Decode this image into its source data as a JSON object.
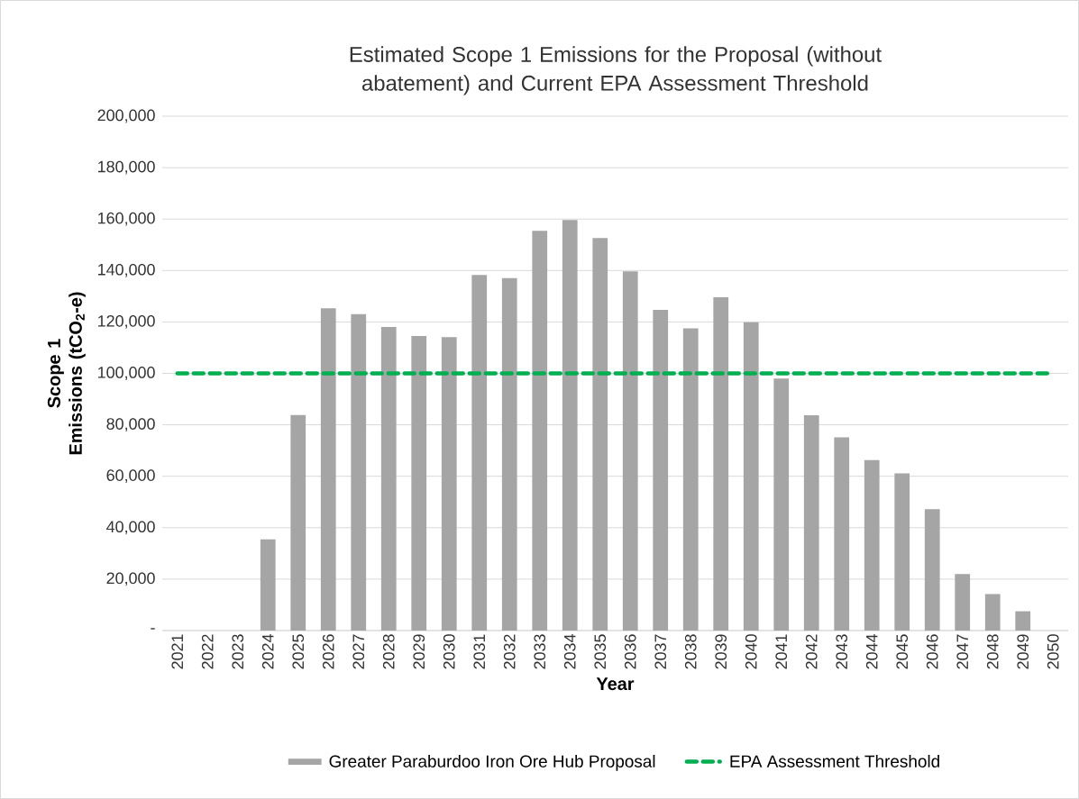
{
  "chart_data": {
    "type": "bar",
    "title": "Estimated Scope 1 Emissions for the Proposal (without abatement) and Current EPA Assessment Threshold",
    "xlabel": "Year",
    "ylabel": "Scope 1 Emissions (tCO$_{2}$-e)",
    "categories": [
      "2021",
      "2022",
      "2023",
      "2024",
      "2025",
      "2026",
      "2027",
      "2028",
      "2029",
      "2030",
      "2031",
      "2032",
      "2033",
      "2034",
      "2035",
      "2036",
      "2037",
      "2038",
      "2039",
      "2040",
      "2041",
      "2042",
      "2043",
      "2044",
      "2045",
      "2046",
      "2047",
      "2048",
      "2049",
      "2050"
    ],
    "series": [
      {
        "name": "Greater Paraburdoo Iron Ore Hub Proposal",
        "color": "#a5a5a5",
        "values": [
          0,
          0,
          0,
          35500,
          83800,
          125300,
          123000,
          118000,
          114500,
          114100,
          138300,
          137000,
          155400,
          159600,
          152600,
          139700,
          124700,
          117500,
          129600,
          119900,
          98000,
          83700,
          75100,
          66300,
          61100,
          47200,
          22000,
          14200,
          7500,
          0
        ]
      }
    ],
    "ylim": [
      0,
      200000
    ],
    "yticks": [
      {
        "value": 0,
        "label": "-"
      },
      {
        "value": 20000,
        "label": "20,000"
      },
      {
        "value": 40000,
        "label": "40,000"
      },
      {
        "value": 60000,
        "label": "60,000"
      },
      {
        "value": 80000,
        "label": "80,000"
      },
      {
        "value": 100000,
        "label": "100,000"
      },
      {
        "value": 120000,
        "label": "120,000"
      },
      {
        "value": 140000,
        "label": "140,000"
      },
      {
        "value": 160000,
        "label": "160,000"
      },
      {
        "value": 180000,
        "label": "180,000"
      },
      {
        "value": 200000,
        "label": "200,000"
      }
    ],
    "ref_lines": [
      {
        "axis": "y",
        "value": 100000,
        "label": "EPA Assessment Threshold",
        "color": "#00b050",
        "line_style": "dashed"
      }
    ],
    "grid": "y",
    "legend": "bottom"
  }
}
